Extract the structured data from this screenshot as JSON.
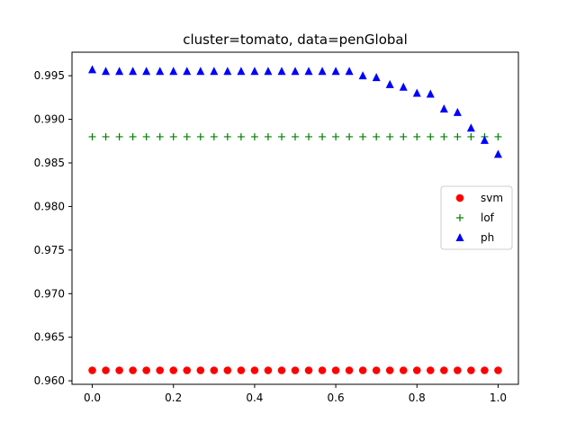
{
  "chart_data": {
    "type": "scatter",
    "title": "cluster=tomato, data=penGlobal",
    "xlabel": "",
    "ylabel": "",
    "xlim": [
      -0.05,
      1.05
    ],
    "ylim": [
      0.9596,
      0.9977
    ],
    "x_ticks": [
      0.0,
      0.2,
      0.4,
      0.6,
      0.8,
      1.0
    ],
    "x_tick_labels": [
      "0.0",
      "0.2",
      "0.4",
      "0.6",
      "0.8",
      "1.0"
    ],
    "y_ticks": [
      0.96,
      0.965,
      0.97,
      0.975,
      0.98,
      0.985,
      0.99,
      0.995
    ],
    "y_tick_labels": [
      "0.960",
      "0.965",
      "0.970",
      "0.975",
      "0.980",
      "0.985",
      "0.990",
      "0.995"
    ],
    "grid": false,
    "legend_position": "center-right",
    "x": [
      0.0,
      0.0333,
      0.0667,
      0.1,
      0.1333,
      0.1667,
      0.2,
      0.2333,
      0.2667,
      0.3,
      0.3333,
      0.3667,
      0.4,
      0.4333,
      0.4667,
      0.5,
      0.5333,
      0.5667,
      0.6,
      0.6333,
      0.6667,
      0.7,
      0.7333,
      0.7667,
      0.8,
      0.8333,
      0.8667,
      0.9,
      0.9333,
      0.9667,
      1.0
    ],
    "series": [
      {
        "name": "svm",
        "marker": "circle",
        "color": "#ff0000",
        "values": [
          0.9612,
          0.9612,
          0.9612,
          0.9612,
          0.9612,
          0.9612,
          0.9612,
          0.9612,
          0.9612,
          0.9612,
          0.9612,
          0.9612,
          0.9612,
          0.9612,
          0.9612,
          0.9612,
          0.9612,
          0.9612,
          0.9612,
          0.9612,
          0.9612,
          0.9612,
          0.9612,
          0.9612,
          0.9612,
          0.9612,
          0.9612,
          0.9612,
          0.9612,
          0.9612,
          0.9612
        ]
      },
      {
        "name": "lof",
        "marker": "plus",
        "color": "#008000",
        "values": [
          0.988,
          0.988,
          0.988,
          0.988,
          0.988,
          0.988,
          0.988,
          0.988,
          0.988,
          0.988,
          0.988,
          0.988,
          0.988,
          0.988,
          0.988,
          0.988,
          0.988,
          0.988,
          0.988,
          0.988,
          0.988,
          0.988,
          0.988,
          0.988,
          0.988,
          0.988,
          0.988,
          0.988,
          0.988,
          0.988,
          0.988
        ]
      },
      {
        "name": "ph",
        "marker": "triangle",
        "color": "#0000ff",
        "values": [
          0.9957,
          0.9955,
          0.9955,
          0.9955,
          0.9955,
          0.9955,
          0.9955,
          0.9955,
          0.9955,
          0.9955,
          0.9955,
          0.9955,
          0.9955,
          0.9955,
          0.9955,
          0.9955,
          0.9955,
          0.9955,
          0.9955,
          0.9955,
          0.995,
          0.9948,
          0.994,
          0.9937,
          0.993,
          0.9929,
          0.9912,
          0.9908,
          0.989,
          0.9876,
          0.986
        ]
      }
    ]
  }
}
